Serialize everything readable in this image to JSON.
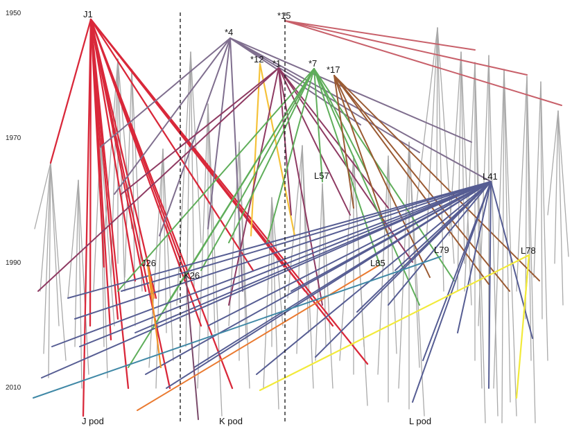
{
  "year_labels": [
    "1950",
    "1970",
    "1990",
    "2010"
  ],
  "pod_labels": [
    "J pod",
    "K pod",
    "L pod"
  ],
  "nodes": {
    "J1": "J1",
    "s4": "*4",
    "s15": "*15",
    "s12": "*12",
    "s1": "*1",
    "s7": "*7",
    "s17": "*17",
    "L57": "L57",
    "L41": "L41",
    "J26": "J26",
    "K26": "K26",
    "L85": "L85",
    "L79": "L79",
    "L78": "L78"
  },
  "colors": {
    "tree": "#a9a9a9",
    "J1": "#d9283a",
    "s4": "#7f6e8e",
    "s15": "#c8606a",
    "s12": "#f5c23a",
    "s1": "#8e3a62",
    "s7": "#5fae5a",
    "s17": "#9a5a32",
    "L41": "#565d93",
    "J26": "#f0952a",
    "K26": "#7a4a6a",
    "L85": "#ea7a30",
    "L79": "#3f88a6",
    "L78": "#f2ea3a"
  }
}
